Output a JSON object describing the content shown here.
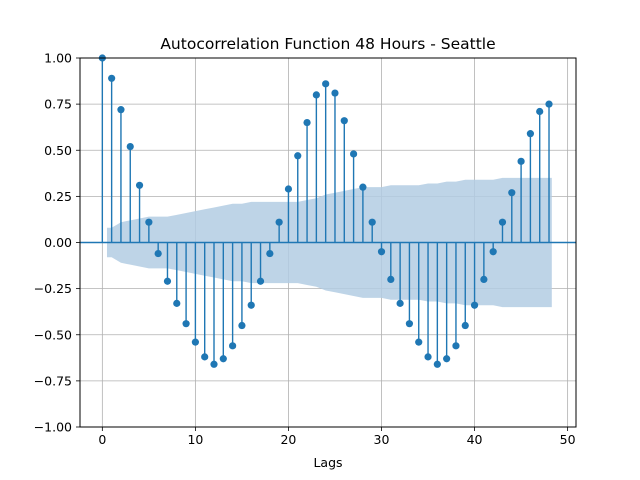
{
  "chart_data": {
    "type": "scatter",
    "subtype": "acf-stem",
    "title": "Autocorrelation Function 48 Hours - Seattle",
    "xlabel": "Lags",
    "ylabel": "",
    "xlim": [
      -2.4,
      50.9
    ],
    "ylim": [
      -1.0,
      1.0
    ],
    "x_ticks": [
      0,
      10,
      20,
      30,
      40,
      50
    ],
    "x_tick_labels": [
      "0",
      "10",
      "20",
      "30",
      "40",
      "50"
    ],
    "y_ticks": [
      1.0,
      0.75,
      0.5,
      0.25,
      0.0,
      -0.25,
      -0.5,
      -0.75,
      -1.0
    ],
    "y_tick_labels": [
      "1.00",
      "0.75",
      "0.50",
      "0.25",
      "0.00",
      "−0.25",
      "−0.50",
      "−0.75",
      "−1.00"
    ],
    "grid": true,
    "legend": "none",
    "lags": [
      0,
      1,
      2,
      3,
      4,
      5,
      6,
      7,
      8,
      9,
      10,
      11,
      12,
      13,
      14,
      15,
      16,
      17,
      18,
      19,
      20,
      21,
      22,
      23,
      24,
      25,
      26,
      27,
      28,
      29,
      30,
      31,
      32,
      33,
      34,
      35,
      36,
      37,
      38,
      39,
      40,
      41,
      42,
      43,
      44,
      45,
      46,
      47,
      48
    ],
    "acf": [
      1.0,
      0.89,
      0.72,
      0.52,
      0.31,
      0.11,
      -0.06,
      -0.21,
      -0.33,
      -0.44,
      -0.54,
      -0.62,
      -0.66,
      -0.63,
      -0.56,
      -0.45,
      -0.34,
      -0.21,
      -0.06,
      0.11,
      0.29,
      0.47,
      0.65,
      0.8,
      0.86,
      0.81,
      0.66,
      0.48,
      0.3,
      0.11,
      -0.05,
      -0.2,
      -0.33,
      -0.44,
      -0.54,
      -0.62,
      -0.66,
      -0.63,
      -0.56,
      -0.45,
      -0.34,
      -0.2,
      -0.05,
      0.11,
      0.27,
      0.44,
      0.59,
      0.71,
      0.75
    ],
    "confint_upper": [
      0.0,
      0.08,
      0.11,
      0.12,
      0.13,
      0.14,
      0.14,
      0.14,
      0.15,
      0.16,
      0.17,
      0.18,
      0.19,
      0.2,
      0.21,
      0.21,
      0.22,
      0.22,
      0.22,
      0.22,
      0.22,
      0.22,
      0.23,
      0.24,
      0.26,
      0.27,
      0.28,
      0.29,
      0.3,
      0.3,
      0.3,
      0.31,
      0.31,
      0.31,
      0.31,
      0.32,
      0.32,
      0.33,
      0.33,
      0.34,
      0.34,
      0.34,
      0.34,
      0.35,
      0.35,
      0.35,
      0.35,
      0.35,
      0.35
    ],
    "colors": {
      "markers": "#1f77b4",
      "confidence_band": "#b3cde3",
      "zero_line": "#1f77b4",
      "grid": "#b0b0b0"
    }
  }
}
